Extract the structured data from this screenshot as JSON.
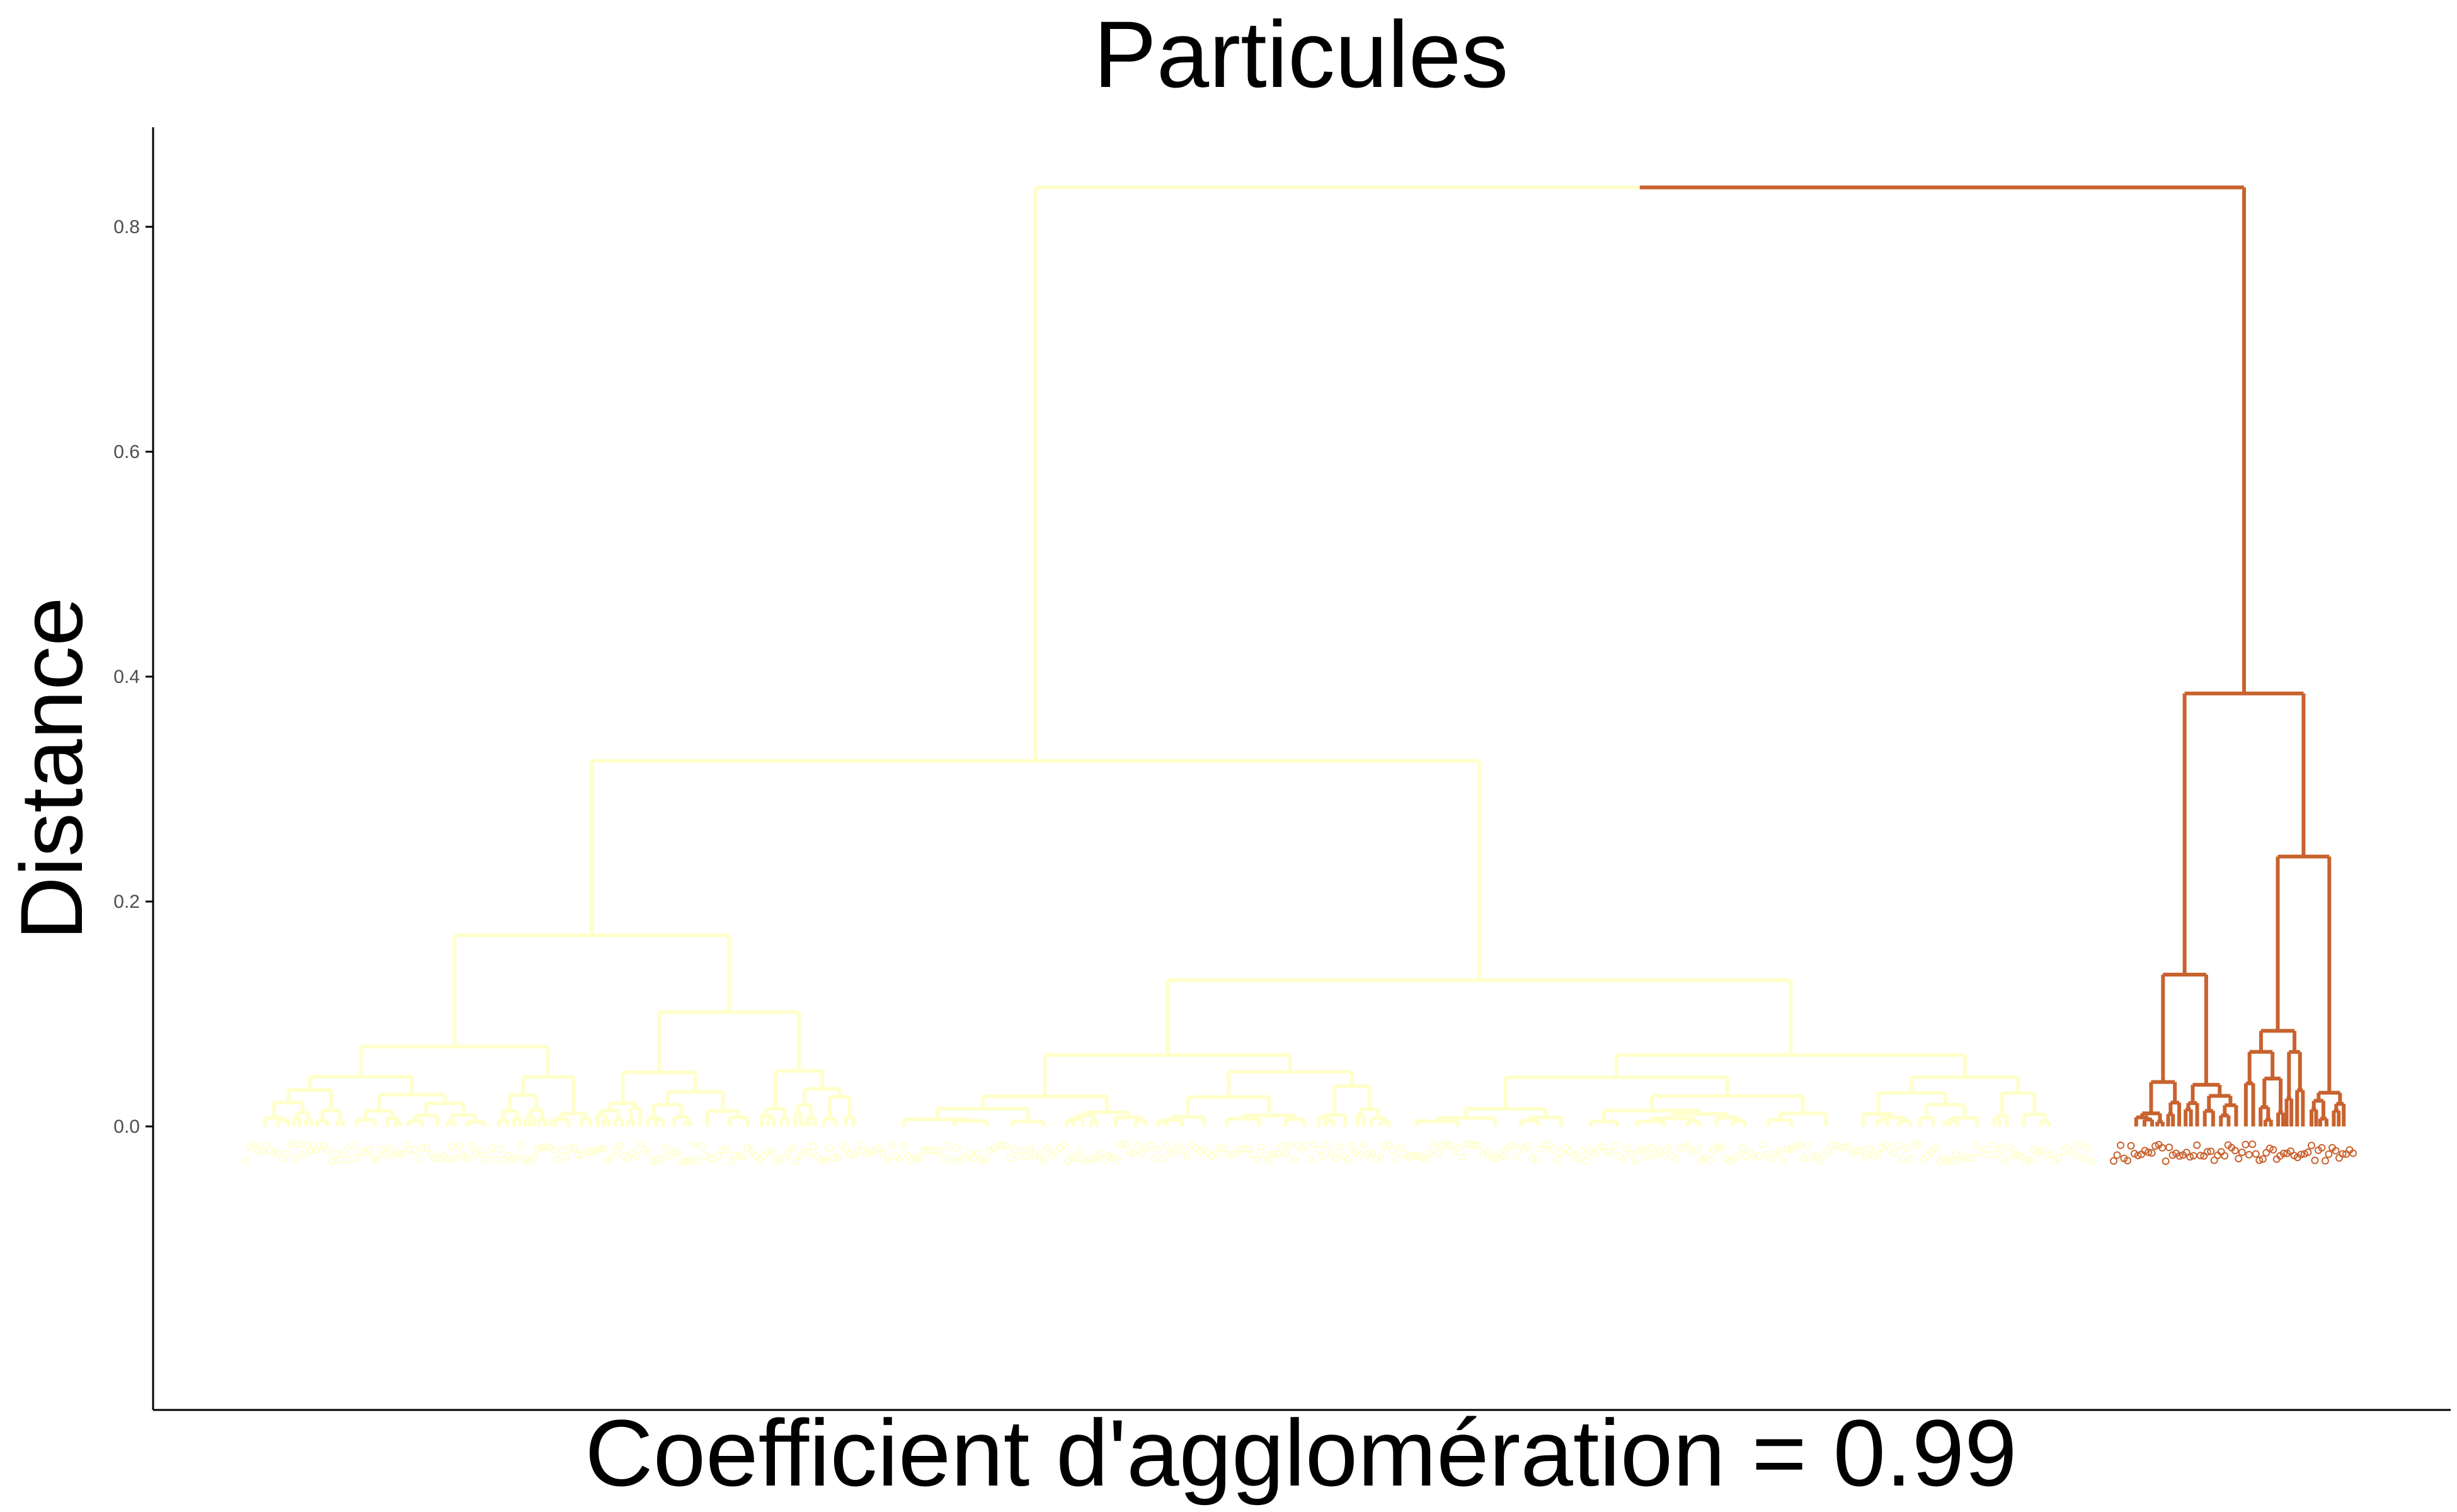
{
  "chart_data": {
    "type": "dendrogram",
    "title": "Particules",
    "xlabel": "Coefficient d'agglomération = 0.99",
    "ylabel": "Distance",
    "yticks": [
      0.0,
      0.2,
      0.4,
      0.6,
      0.8
    ],
    "ytick_labels": [
      "0.0",
      "0.2",
      "0.4",
      "0.6",
      "0.8"
    ],
    "ylim": [
      -0.25,
      0.89
    ],
    "grid": false,
    "legend": "none",
    "clusters": [
      {
        "color": "#ffffcc",
        "leaf_count": 450
      },
      {
        "color": "#c8622e",
        "leaf_count": 70
      }
    ],
    "merge_heights": {
      "root": 0.835,
      "yellow_top": 0.325,
      "yellow_left": 0.17,
      "yellow_right": 0.13,
      "orange_top": 0.385,
      "orange_right": 0.24
    },
    "note_ids_unused": null
  }
}
